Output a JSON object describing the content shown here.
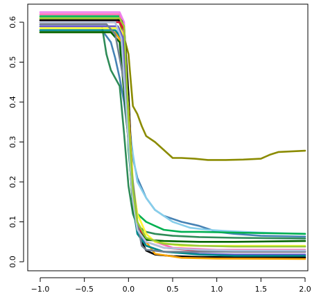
{
  "chart_data": {
    "type": "line",
    "title": "",
    "xlabel": "",
    "ylabel": "",
    "xlim": [
      -1.0,
      2.0
    ],
    "ylim": [
      -0.01,
      0.64
    ],
    "grid": false,
    "legend": "none",
    "x_ticks": [
      -1.0,
      -0.5,
      0.0,
      0.5,
      1.0,
      1.5,
      2.0
    ],
    "x_tick_labels": [
      "−1.0",
      "−0.5",
      "0.0",
      "0.5",
      "1.0",
      "1.5",
      "2.0"
    ],
    "y_ticks": [
      0.0,
      0.1,
      0.2,
      0.3,
      0.4,
      0.5,
      0.6
    ],
    "y_tick_labels": [
      "0.0",
      "0.1",
      "0.2",
      "0.3",
      "0.4",
      "0.5",
      "0.6"
    ],
    "series": [
      {
        "color": "#8b8b00",
        "x": [
          -1.0,
          -0.12,
          -0.07,
          0.0,
          0.05,
          0.1,
          0.15,
          0.2,
          0.3,
          0.4,
          0.5,
          0.6,
          0.75,
          0.9,
          1.1,
          1.3,
          1.5,
          1.6,
          1.7,
          2.0
        ],
        "y": [
          0.61,
          0.61,
          0.58,
          0.52,
          0.39,
          0.37,
          0.34,
          0.315,
          0.3,
          0.28,
          0.26,
          0.26,
          0.258,
          0.255,
          0.255,
          0.256,
          0.258,
          0.268,
          0.275,
          0.278
        ]
      },
      {
        "color": "#4682b4",
        "x": [
          -1.0,
          -0.3,
          -0.2,
          -0.15,
          -0.1,
          -0.05,
          0.0,
          0.05,
          0.1,
          0.2,
          0.3,
          0.4,
          0.6,
          0.8,
          1.0,
          1.2,
          1.5,
          2.0
        ],
        "y": [
          0.58,
          0.58,
          0.55,
          0.51,
          0.46,
          0.4,
          0.31,
          0.26,
          0.21,
          0.16,
          0.13,
          0.115,
          0.1,
          0.09,
          0.075,
          0.07,
          0.065,
          0.063
        ]
      },
      {
        "color": "#87ceeb",
        "x": [
          -1.0,
          -0.15,
          -0.1,
          -0.05,
          0.0,
          0.05,
          0.1,
          0.2,
          0.3,
          0.5,
          0.7,
          0.9,
          1.1,
          1.3,
          1.5,
          2.0
        ],
        "y": [
          0.6,
          0.6,
          0.56,
          0.45,
          0.36,
          0.27,
          0.2,
          0.16,
          0.13,
          0.1,
          0.085,
          0.08,
          0.077,
          0.075,
          0.073,
          0.07
        ]
      },
      {
        "color": "#2e8b57",
        "x": [
          -1.0,
          -0.3,
          -0.25,
          -0.2,
          -0.1,
          -0.05,
          0.0,
          0.05,
          0.1,
          0.2,
          0.3,
          0.5,
          0.8,
          1.2,
          2.0
        ],
        "y": [
          0.59,
          0.59,
          0.52,
          0.48,
          0.44,
          0.32,
          0.19,
          0.12,
          0.09,
          0.075,
          0.07,
          0.065,
          0.062,
          0.06,
          0.058
        ]
      },
      {
        "color": "#00b050",
        "x": [
          -1.0,
          -0.08,
          -0.04,
          0.0,
          0.05,
          0.1,
          0.2,
          0.3,
          0.4,
          0.6,
          0.8,
          1.2,
          2.0
        ],
        "y": [
          0.615,
          0.615,
          0.5,
          0.28,
          0.16,
          0.12,
          0.1,
          0.09,
          0.08,
          0.075,
          0.075,
          0.073,
          0.07
        ]
      },
      {
        "color": "#000000",
        "x": [
          -1.0,
          -0.08,
          -0.05,
          0.0,
          0.05,
          0.1,
          0.15,
          0.2,
          0.3,
          0.5,
          0.8,
          1.2,
          2.0
        ],
        "y": [
          0.605,
          0.605,
          0.59,
          0.42,
          0.18,
          0.09,
          0.05,
          0.028,
          0.018,
          0.014,
          0.012,
          0.011,
          0.011
        ]
      },
      {
        "color": "#ff69b4",
        "x": [
          -1.0,
          -0.1,
          -0.06,
          0.0,
          0.05,
          0.1,
          0.2,
          0.3,
          0.5,
          1.0,
          2.0
        ],
        "y": [
          0.62,
          0.62,
          0.58,
          0.36,
          0.19,
          0.12,
          0.07,
          0.05,
          0.035,
          0.03,
          0.03
        ]
      },
      {
        "color": "#ee82ee",
        "x": [
          -1.0,
          -0.1,
          -0.05,
          0.0,
          0.05,
          0.1,
          0.2,
          0.4,
          0.7,
          1.2,
          2.0
        ],
        "y": [
          0.625,
          0.625,
          0.6,
          0.32,
          0.15,
          0.09,
          0.06,
          0.045,
          0.04,
          0.038,
          0.038
        ]
      },
      {
        "color": "#ffff33",
        "x": [
          -1.0,
          -0.1,
          -0.06,
          0.0,
          0.05,
          0.1,
          0.2,
          0.3,
          0.6,
          1.0,
          2.0
        ],
        "y": [
          0.585,
          0.585,
          0.57,
          0.38,
          0.2,
          0.12,
          0.07,
          0.05,
          0.04,
          0.04,
          0.04
        ]
      },
      {
        "color": "#ffa500",
        "x": [
          -1.0,
          -0.15,
          -0.08,
          0.0,
          0.05,
          0.1,
          0.2,
          0.3,
          0.6,
          1.0,
          2.0
        ],
        "y": [
          0.575,
          0.575,
          0.55,
          0.38,
          0.19,
          0.1,
          0.05,
          0.02,
          0.01,
          0.008,
          0.007
        ]
      },
      {
        "color": "#dc143c",
        "x": [
          -1.0,
          -0.1,
          -0.05,
          0.0,
          0.05,
          0.1,
          0.2,
          0.4,
          0.8,
          1.2,
          2.0
        ],
        "y": [
          0.6,
          0.6,
          0.58,
          0.36,
          0.17,
          0.09,
          0.05,
          0.035,
          0.028,
          0.025,
          0.025
        ]
      },
      {
        "color": "#6a5acd",
        "x": [
          -1.0,
          -0.12,
          -0.06,
          0.0,
          0.05,
          0.1,
          0.2,
          0.4,
          0.8,
          1.2,
          2.0
        ],
        "y": [
          0.59,
          0.59,
          0.56,
          0.35,
          0.17,
          0.08,
          0.04,
          0.025,
          0.02,
          0.018,
          0.018
        ]
      },
      {
        "color": "#008b8b",
        "x": [
          -1.0,
          -0.15,
          -0.08,
          0.0,
          0.05,
          0.1,
          0.2,
          0.4,
          0.8,
          1.2,
          2.0
        ],
        "y": [
          0.58,
          0.58,
          0.56,
          0.3,
          0.14,
          0.07,
          0.04,
          0.025,
          0.018,
          0.015,
          0.015
        ]
      },
      {
        "color": "#006400",
        "x": [
          -1.0,
          -0.2,
          -0.1,
          0.0,
          0.05,
          0.1,
          0.2,
          0.4,
          0.8,
          1.2,
          2.0
        ],
        "y": [
          0.575,
          0.575,
          0.55,
          0.3,
          0.14,
          0.08,
          0.055,
          0.052,
          0.05,
          0.05,
          0.052
        ]
      },
      {
        "color": "#708090",
        "x": [
          -1.0,
          -0.25,
          -0.15,
          -0.05,
          0.0,
          0.05,
          0.1,
          0.15,
          0.2,
          0.4,
          0.8,
          1.2,
          2.0
        ],
        "y": [
          0.595,
          0.595,
          0.57,
          0.45,
          0.3,
          0.2,
          0.1,
          0.04,
          0.03,
          0.025,
          0.025,
          0.025,
          0.025
        ]
      },
      {
        "color": "#b0c4de",
        "x": [
          -1.0,
          -0.15,
          -0.08,
          0.0,
          0.05,
          0.1,
          0.2,
          0.4,
          0.8,
          1.2,
          2.0
        ],
        "y": [
          0.6,
          0.6,
          0.56,
          0.3,
          0.15,
          0.08,
          0.05,
          0.035,
          0.03,
          0.028,
          0.028
        ]
      },
      {
        "color": "#9acd32",
        "x": [
          -1.0,
          -0.1,
          -0.05,
          0.0,
          0.05,
          0.1,
          0.2,
          0.4,
          0.8,
          1.2,
          2.0
        ],
        "y": [
          0.61,
          0.61,
          0.59,
          0.36,
          0.18,
          0.1,
          0.06,
          0.045,
          0.04,
          0.038,
          0.038
        ]
      }
    ]
  }
}
